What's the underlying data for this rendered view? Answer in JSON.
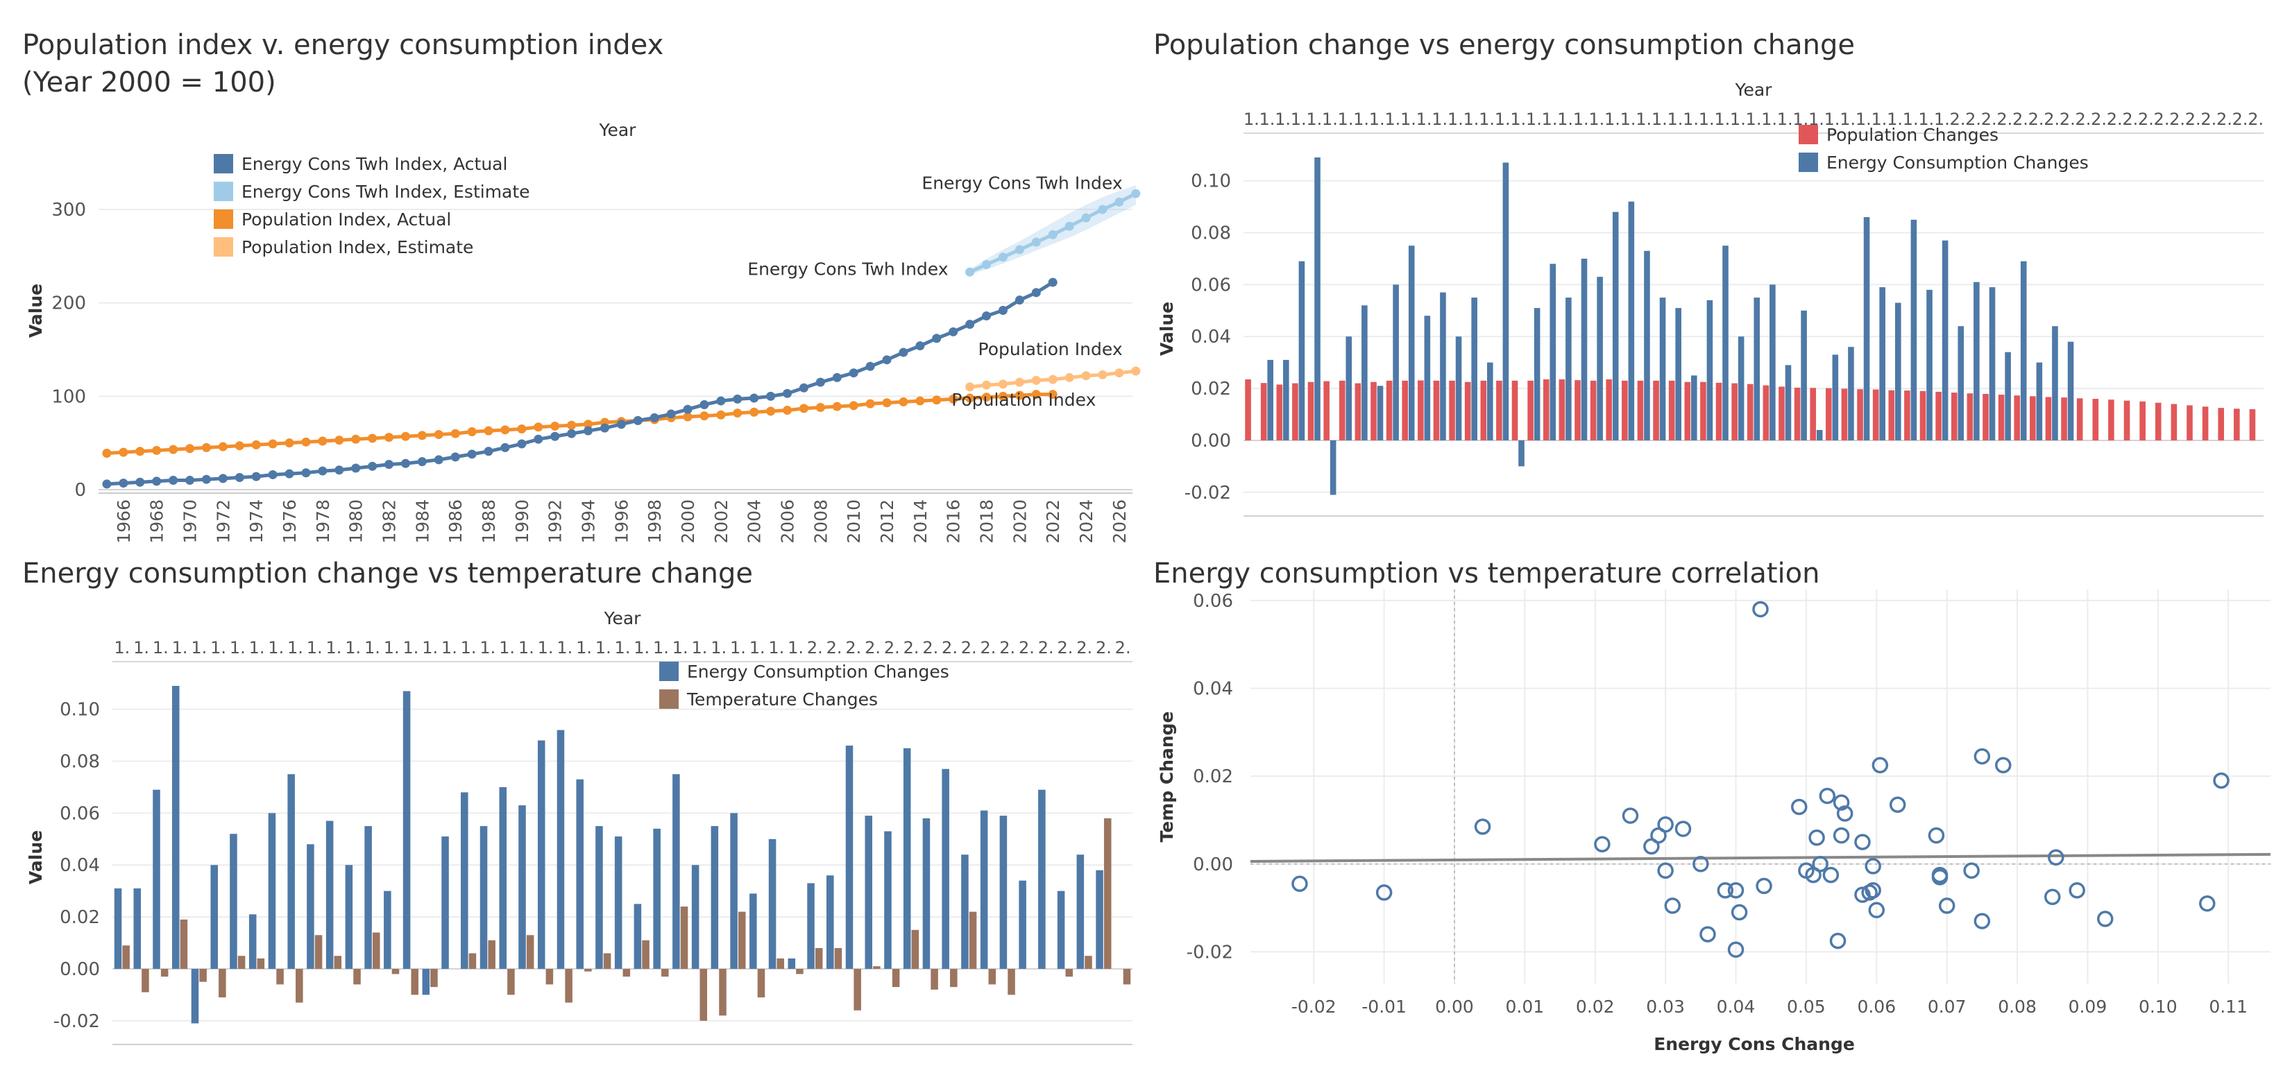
{
  "colors": {
    "energy_actual": "#4e79a7",
    "energy_estimate": "#a0cbe8",
    "population_actual": "#f28e2b",
    "population_estimate": "#ffbe7d",
    "population_changes": "#e15759",
    "energy_changes": "#4e79a7",
    "temperature_changes": "#9c755f",
    "scatter_point": "#4e79a7",
    "trend_line": "#888888"
  },
  "panels": [
    {
      "title_lines": [
        "Population index v. energy consumption index",
        "(Year 2000 = 100)"
      ]
    },
    {
      "title_lines": [
        "Population change vs energy consumption change"
      ]
    },
    {
      "title_lines": [
        "Energy consumption change vs temperature change"
      ]
    },
    {
      "title_lines": [
        "Energy consumption vs temperature correlation"
      ]
    }
  ],
  "chart_data": [
    {
      "type": "line",
      "title": "Population index v. energy consumption index (Year 2000 = 100)",
      "header": "Year",
      "ylabel": "Value",
      "ylim": [
        0,
        355
      ],
      "yticks": [
        0,
        100,
        200,
        300
      ],
      "xlim": [
        1964.5,
        2026.8
      ],
      "xticks": [
        "1966",
        "1968",
        "1970",
        "1972",
        "1974",
        "1976",
        "1978",
        "1980",
        "1982",
        "1984",
        "1986",
        "1988",
        "1990",
        "1992",
        "1994",
        "1996",
        "1998",
        "2000",
        "2002",
        "2004",
        "2006",
        "2008",
        "2010",
        "2012",
        "2014",
        "2016",
        "2018",
        "2020",
        "2022",
        "2024",
        "2026"
      ],
      "legend": [
        {
          "label": "Energy Cons Twh Index, Actual",
          "color": "#4e79a7"
        },
        {
          "label": "Energy Cons Twh Index, Estimate",
          "color": "#a0cbe8"
        },
        {
          "label": "Population Index, Actual",
          "color": "#f28e2b"
        },
        {
          "label": "Population Index, Estimate",
          "color": "#ffbe7d"
        }
      ],
      "annotations": [
        {
          "text": "Energy Cons Twh Index",
          "x": 2026.2,
          "y": 322,
          "anchor": "end"
        },
        {
          "text": "Energy Cons Twh Index",
          "x": 2015.7,
          "y": 230,
          "anchor": "end"
        },
        {
          "text": "Population Index",
          "x": 2026.2,
          "y": 144,
          "anchor": "end"
        },
        {
          "text": "Population Index",
          "x": 2024.6,
          "y": 90,
          "anchor": "end"
        }
      ],
      "series": [
        {
          "name": "Energy Cons Twh Index, Actual",
          "x_start": 1965,
          "values": [
            6,
            7,
            8,
            9,
            10,
            10,
            11,
            12,
            13,
            14,
            16,
            17,
            18,
            20,
            21,
            23,
            25,
            27,
            28,
            30,
            32,
            35,
            38,
            41,
            45,
            49,
            54,
            57,
            60,
            63,
            66,
            70,
            74,
            77,
            81,
            86,
            91,
            95,
            97,
            98,
            100,
            103,
            109,
            115,
            120,
            125,
            132,
            139,
            147,
            154,
            162,
            169,
            177,
            186,
            192,
            203,
            211,
            222
          ]
        },
        {
          "name": "Energy Cons Twh Index, Estimate",
          "x_start": 2017,
          "values": [
            233,
            241,
            249,
            257,
            265,
            273,
            282,
            291,
            300,
            308,
            317
          ],
          "band_upper": [
            236,
            247,
            257,
            266,
            276,
            286,
            296,
            305,
            313,
            320,
            326
          ],
          "band_lower": [
            230,
            236,
            242,
            249,
            256,
            263,
            270,
            278,
            287,
            296,
            305
          ]
        },
        {
          "name": "Population Index, Actual",
          "x_start": 1965,
          "values": [
            39,
            40,
            41,
            42,
            43,
            44,
            45,
            46,
            47,
            48,
            49,
            50,
            51,
            52,
            53,
            54,
            55,
            56,
            57,
            58,
            59,
            60,
            62,
            63,
            64,
            65,
            67,
            68,
            69,
            70,
            72,
            73,
            74,
            75,
            77,
            78,
            79,
            80,
            82,
            83,
            84,
            85,
            87,
            88,
            89,
            90,
            92,
            93,
            94,
            95,
            96,
            97,
            98,
            99,
            100,
            101,
            102,
            102
          ]
        },
        {
          "name": "Population Index, Estimate",
          "x_start": 2017,
          "values": [
            110,
            112,
            113,
            115,
            117,
            118,
            120,
            122,
            123,
            125,
            127
          ]
        }
      ]
    },
    {
      "type": "bar",
      "title": "Population change vs energy consumption change",
      "header": "Year",
      "ylabel": "Value",
      "ylim": [
        -0.027,
        0.113
      ],
      "yticks": [
        -0.02,
        0.0,
        0.02,
        0.04,
        0.06,
        0.08,
        0.1
      ],
      "ytick_labels": [
        "-0.02",
        "0.00",
        "0.02",
        "0.04",
        "0.06",
        "0.08",
        "0.10"
      ],
      "category_labels": [
        "1.",
        "1.",
        "1.",
        "1.",
        "1.",
        "1.",
        "1.",
        "1.",
        "1.",
        "1.",
        "1.",
        "1.",
        "1.",
        "1.",
        "1.",
        "1.",
        "1.",
        "1.",
        "1.",
        "1.",
        "1.",
        "1.",
        "1.",
        "1.",
        "1.",
        "1.",
        "1.",
        "1.",
        "1.",
        "1.",
        "1.",
        "1.",
        "1.",
        "1.",
        "1.",
        "1.",
        "1.",
        "1.",
        "1.",
        "1.",
        "1.",
        "1.",
        "1.",
        "1.",
        "1.",
        "2.",
        "2.",
        "2.",
        "2.",
        "2.",
        "2.",
        "2.",
        "2.",
        "2.",
        "2.",
        "2.",
        "2.",
        "2.",
        "2.",
        "2.",
        "2.",
        "2.",
        "2.",
        "2.",
        "2."
      ],
      "legend": [
        {
          "label": "Population Changes",
          "color": "#e15759"
        },
        {
          "label": "Energy Consumption Changes",
          "color": "#4e79a7"
        }
      ],
      "series": [
        {
          "name": "Population Changes",
          "values": [
            0.0235,
            0.0221,
            0.0215,
            0.022,
            0.0225,
            0.0228,
            0.023,
            0.022,
            0.0225,
            0.023,
            0.023,
            0.0231,
            0.023,
            0.023,
            0.0225,
            0.023,
            0.023,
            0.023,
            0.023,
            0.0235,
            0.0235,
            0.0232,
            0.023,
            0.0235,
            0.023,
            0.023,
            0.023,
            0.023,
            0.0225,
            0.0225,
            0.0222,
            0.022,
            0.0217,
            0.0212,
            0.0207,
            0.0203,
            0.0202,
            0.0201,
            0.0199,
            0.0197,
            0.0196,
            0.0193,
            0.0192,
            0.019,
            0.0187,
            0.0184,
            0.0181,
            0.0179,
            0.0176,
            0.0173,
            0.017,
            0.0167,
            0.0165,
            0.0162,
            0.016,
            0.0157,
            0.0153,
            0.015,
            0.0145,
            0.014,
            0.0135,
            0.013,
            0.0125,
            0.0122,
            0.012
          ]
        },
        {
          "name": "Energy Consumption Changes",
          "values": [
            0.0,
            0.031,
            0.031,
            0.069,
            0.109,
            -0.021,
            0.04,
            0.052,
            0.021,
            0.06,
            0.075,
            0.048,
            0.057,
            0.04,
            0.055,
            0.03,
            0.107,
            -0.01,
            0.051,
            0.068,
            0.055,
            0.07,
            0.063,
            0.088,
            0.092,
            0.073,
            0.055,
            0.051,
            0.025,
            0.054,
            0.075,
            0.04,
            0.055,
            0.06,
            0.029,
            0.05,
            0.004,
            0.033,
            0.036,
            0.086,
            0.059,
            0.053,
            0.085,
            0.058,
            0.077,
            0.044,
            0.061,
            0.059,
            0.034,
            0.069,
            0.03,
            0.044,
            0.038,
            0.0,
            0.0,
            0.0,
            0.0,
            0.0,
            0.0,
            0.0,
            0.0,
            0.0,
            0.0,
            0.0,
            0.0
          ]
        }
      ]
    },
    {
      "type": "bar",
      "title": "Energy consumption change vs temperature change",
      "header": "Year",
      "ylabel": "Value",
      "ylim": [
        -0.027,
        0.113
      ],
      "yticks": [
        -0.02,
        0.0,
        0.02,
        0.04,
        0.06,
        0.08,
        0.1
      ],
      "ytick_labels": [
        "-0.02",
        "0.00",
        "0.02",
        "0.04",
        "0.06",
        "0.08",
        "0.10"
      ],
      "category_labels": [
        "1.",
        "1.",
        "1.",
        "1.",
        "1.",
        "1.",
        "1.",
        "1.",
        "1.",
        "1.",
        "1.",
        "1.",
        "1.",
        "1.",
        "1.",
        "1.",
        "1.",
        "1.",
        "1.",
        "1.",
        "1.",
        "1.",
        "1.",
        "1.",
        "1.",
        "1.",
        "1.",
        "1.",
        "1.",
        "1.",
        "1.",
        "1.",
        "1.",
        "1.",
        "1.",
        "1.",
        "2.",
        "2.",
        "2.",
        "2.",
        "2.",
        "2.",
        "2.",
        "2.",
        "2.",
        "2.",
        "2.",
        "2.",
        "2.",
        "2.",
        "2.",
        "2.",
        "2."
      ],
      "legend": [
        {
          "label": "Energy Consumption Changes",
          "color": "#4e79a7"
        },
        {
          "label": "Temperature Changes",
          "color": "#9c755f"
        }
      ],
      "series": [
        {
          "name": "Energy Consumption Changes",
          "values": [
            0.031,
            0.031,
            0.069,
            0.109,
            -0.021,
            0.04,
            0.052,
            0.021,
            0.06,
            0.075,
            0.048,
            0.057,
            0.04,
            0.055,
            0.03,
            0.107,
            -0.01,
            0.051,
            0.068,
            0.055,
            0.07,
            0.063,
            0.088,
            0.092,
            0.073,
            0.055,
            0.051,
            0.025,
            0.054,
            0.075,
            0.04,
            0.055,
            0.06,
            0.029,
            0.05,
            0.004,
            0.033,
            0.036,
            0.086,
            0.059,
            0.053,
            0.085,
            0.058,
            0.077,
            0.044,
            0.061,
            0.059,
            0.034,
            0.069,
            0.03,
            0.044,
            0.038,
            0.0
          ]
        },
        {
          "name": "Temperature Changes",
          "values": [
            0.009,
            -0.009,
            -0.003,
            0.019,
            -0.005,
            -0.011,
            0.005,
            0.004,
            -0.006,
            -0.013,
            0.013,
            0.005,
            -0.006,
            0.014,
            -0.002,
            -0.01,
            -0.007,
            0.0,
            0.006,
            0.011,
            -0.01,
            0.013,
            -0.006,
            -0.013,
            -0.001,
            0.006,
            -0.003,
            0.011,
            -0.003,
            0.024,
            -0.02,
            -0.018,
            0.022,
            -0.011,
            0.004,
            -0.002,
            0.008,
            0.008,
            -0.016,
            0.001,
            -0.007,
            0.015,
            -0.008,
            -0.007,
            0.022,
            -0.006,
            -0.01,
            0.0,
            0.0,
            -0.003,
            0.005,
            0.058,
            -0.006
          ]
        }
      ]
    },
    {
      "type": "scatter",
      "title": "Energy consumption vs temperature correlation",
      "xlabel": "Energy Cons Change",
      "ylabel": "Temp Change",
      "xlim": [
        -0.029,
        0.116
      ],
      "ylim": [
        -0.0272,
        0.0625
      ],
      "xticks": [
        -0.02,
        -0.01,
        0.0,
        0.01,
        0.02,
        0.03,
        0.04,
        0.05,
        0.06,
        0.07,
        0.08,
        0.09,
        0.1,
        0.11
      ],
      "xtick_labels": [
        "-0.02",
        "-0.01",
        "0.00",
        "0.01",
        "0.02",
        "0.03",
        "0.04",
        "0.05",
        "0.06",
        "0.07",
        "0.08",
        "0.09",
        "0.10",
        "0.11"
      ],
      "yticks": [
        -0.02,
        0.0,
        0.02,
        0.04,
        0.06
      ],
      "ytick_labels": [
        "-0.02",
        "0.00",
        "0.02",
        "0.04",
        "0.06"
      ],
      "trend": {
        "x": [
          -0.029,
          0.116
        ],
        "y": [
          0.0006,
          0.0022
        ]
      },
      "points": [
        [
          0.0435,
          0.058
        ],
        [
          0.109,
          0.019
        ],
        [
          0.075,
          0.0245
        ],
        [
          0.078,
          0.0225
        ],
        [
          0.0605,
          0.0225
        ],
        [
          0.053,
          0.0155
        ],
        [
          0.055,
          0.014
        ],
        [
          0.0555,
          0.0115
        ],
        [
          0.049,
          0.013
        ],
        [
          0.063,
          0.0135
        ],
        [
          0.025,
          0.011
        ],
        [
          0.004,
          0.0085
        ],
        [
          0.03,
          0.009
        ],
        [
          0.0325,
          0.008
        ],
        [
          0.029,
          0.0065
        ],
        [
          0.021,
          0.0045
        ],
        [
          0.028,
          0.004
        ],
        [
          0.055,
          0.0065
        ],
        [
          0.0515,
          0.006
        ],
        [
          0.058,
          0.005
        ],
        [
          0.0685,
          0.0065
        ],
        [
          0.0855,
          0.0015
        ],
        [
          0.035,
          0.0
        ],
        [
          0.052,
          0.0
        ],
        [
          0.0595,
          -0.0005
        ],
        [
          0.05,
          -0.0015
        ],
        [
          0.03,
          -0.0015
        ],
        [
          0.051,
          -0.0025
        ],
        [
          0.0535,
          -0.0025
        ],
        [
          0.0735,
          -0.0015
        ],
        [
          0.069,
          -0.0025
        ],
        [
          0.069,
          -0.003
        ],
        [
          0.044,
          -0.005
        ],
        [
          0.04,
          -0.006
        ],
        [
          0.0385,
          -0.006
        ],
        [
          0.0595,
          -0.006
        ],
        [
          0.059,
          -0.0065
        ],
        [
          0.058,
          -0.007
        ],
        [
          0.085,
          -0.0075
        ],
        [
          0.0885,
          -0.006
        ],
        [
          0.031,
          -0.0095
        ],
        [
          0.07,
          -0.0095
        ],
        [
          0.107,
          -0.009
        ],
        [
          0.06,
          -0.0105
        ],
        [
          0.0405,
          -0.011
        ],
        [
          0.0925,
          -0.0125
        ],
        [
          0.075,
          -0.013
        ],
        [
          0.036,
          -0.016
        ],
        [
          0.0545,
          -0.0175
        ],
        [
          0.04,
          -0.0195
        ],
        [
          -0.022,
          -0.0045
        ],
        [
          -0.01,
          -0.0065
        ]
      ]
    }
  ]
}
